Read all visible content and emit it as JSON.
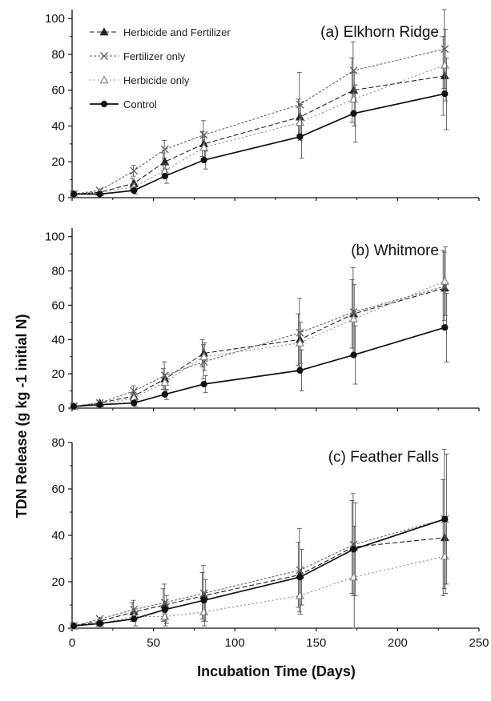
{
  "chart_data": {
    "type": "line",
    "ylabel": "TDN Release (g kg -1 initial N)",
    "xlabel": "Incubation Time (Days)",
    "x_ticks": [
      0,
      50,
      100,
      150,
      200,
      250
    ],
    "xlim": [
      0,
      250
    ],
    "legend": {
      "placement": "top-left",
      "entries": [
        "Herbicide and Fertilizer",
        "Fertilizer only",
        "Herbicide only",
        "Control"
      ]
    },
    "series_styles": [
      {
        "name": "Herbicide and Fertilizer",
        "marker": "filled-triangle",
        "color": "#222222",
        "dash": "6,3"
      },
      {
        "name": "Fertilizer only",
        "marker": "x",
        "color": "#666666",
        "dash": "3,2"
      },
      {
        "name": "Herbicide only",
        "marker": "open-triangle",
        "color": "#888888",
        "dash": "2,3"
      },
      {
        "name": "Control",
        "marker": "filled-circle",
        "color": "#111111",
        "dash": ""
      }
    ],
    "panels": [
      {
        "title": "(a) Elkhorn Ridge",
        "ylim": [
          0,
          105
        ],
        "y_ticks": [
          0,
          20,
          40,
          60,
          80,
          100
        ],
        "x": [
          1,
          17,
          38,
          57,
          81,
          140,
          173,
          229
        ],
        "series": [
          {
            "name": "Herbicide and Fertilizer",
            "values": [
              2,
              3,
              8,
              20,
              30,
              45,
              60,
              68
            ],
            "errors": [
              1,
              1,
              3,
              5,
              7,
              10,
              18,
              22
            ]
          },
          {
            "name": "Fertilizer only",
            "values": [
              2,
              4,
              15,
              27,
              35,
              52,
              71,
              83
            ],
            "errors": [
              1,
              1,
              3,
              5,
              8,
              18,
              16,
              22
            ]
          },
          {
            "name": "Herbicide only",
            "values": [
              2,
              3,
              6,
              15,
              28,
              42,
              55,
              74
            ],
            "errors": [
              1,
              1,
              2,
              4,
              6,
              10,
              15,
              20
            ]
          },
          {
            "name": "Control",
            "values": [
              2,
              2,
              4,
              12,
              21,
              34,
              47,
              58
            ],
            "errors": [
              1,
              1,
              2,
              4,
              5,
              12,
              16,
              20
            ]
          }
        ]
      },
      {
        "title": "(b) Whitmore",
        "ylim": [
          0,
          105
        ],
        "y_ticks": [
          0,
          20,
          40,
          60,
          80,
          100
        ],
        "x": [
          1,
          17,
          38,
          57,
          81,
          140,
          173,
          229
        ],
        "series": [
          {
            "name": "Herbicide and Fertilizer",
            "values": [
              1,
              3,
              7,
              17,
              32,
              40,
              55,
              70
            ],
            "errors": [
              1,
              1,
              2,
              6,
              8,
              15,
              20,
              22
            ]
          },
          {
            "name": "Fertilizer only",
            "values": [
              1,
              3,
              10,
              19,
              27,
              44,
              56,
              71
            ],
            "errors": [
              1,
              1,
              3,
              8,
              10,
              20,
              26,
              20
            ]
          },
          {
            "name": "Herbicide only",
            "values": [
              1,
              2,
              6,
              15,
              30,
              38,
              52,
              74
            ],
            "errors": [
              1,
              1,
              2,
              5,
              8,
              12,
              20,
              20
            ]
          },
          {
            "name": "Control",
            "values": [
              1,
              2,
              3,
              8,
              14,
              22,
              31,
              47
            ],
            "errors": [
              1,
              1,
              2,
              3,
              5,
              12,
              17,
              20
            ]
          }
        ]
      },
      {
        "title": "(c) Feather Falls",
        "ylim": [
          0,
          80
        ],
        "y_ticks": [
          0,
          20,
          40,
          60,
          80
        ],
        "x": [
          1,
          17,
          38,
          57,
          81,
          140,
          173,
          229
        ],
        "series": [
          {
            "name": "Herbicide and Fertilizer",
            "values": [
              1,
              3,
              7,
              10,
              14,
              23,
              35,
              39
            ],
            "errors": [
              1,
              1,
              4,
              7,
              10,
              14,
              20,
              25
            ]
          },
          {
            "name": "Fertilizer only",
            "values": [
              1,
              4,
              8,
              11,
              15,
              25,
              36,
              47
            ],
            "errors": [
              1,
              1,
              4,
              8,
              12,
              18,
              22,
              30
            ]
          },
          {
            "name": "Herbicide only",
            "values": [
              1,
              2,
              5,
              5,
              7,
              14,
              22,
              31
            ],
            "errors": [
              1,
              1,
              2,
              4,
              6,
              8,
              22,
              16
            ]
          },
          {
            "name": "Control",
            "values": [
              1,
              2,
              4,
              8,
              12,
              22,
              34,
              47
            ],
            "errors": [
              1,
              1,
              3,
              6,
              9,
              12,
              20,
              28
            ]
          }
        ]
      }
    ]
  }
}
